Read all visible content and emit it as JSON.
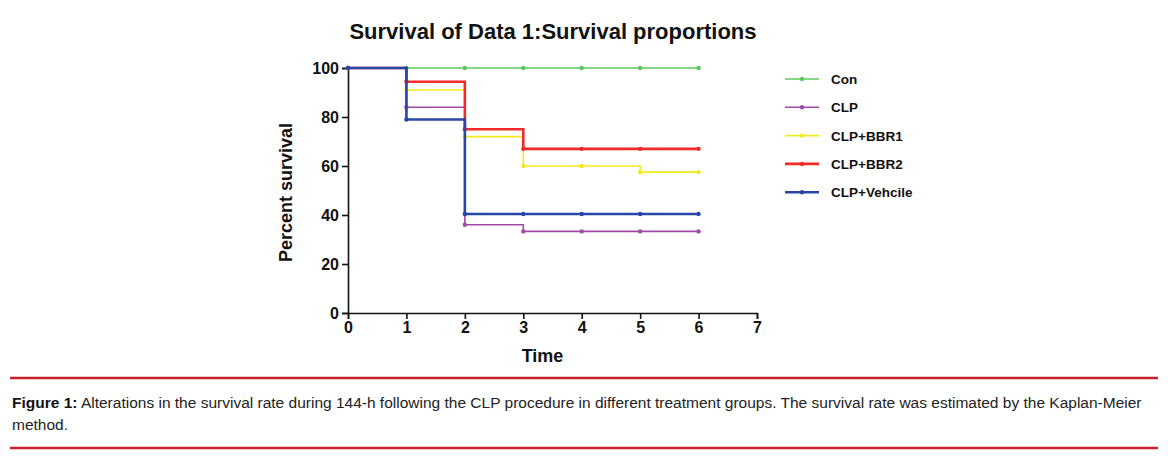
{
  "chart_data": {
    "type": "line",
    "title": "Survival of Data 1:Survival proportions",
    "x_label": "Time",
    "y_label": "Percent survival",
    "caption_label": "Figure 1:",
    "caption": "Alterations in the survival rate during 144-h following the CLP procedure in different treatment groups. The survival rate was estimated by the Kaplan-Meier method.",
    "x": [
      0,
      1,
      2,
      3,
      4,
      5,
      6
    ],
    "series": [
      {
        "name": "Con",
        "color": "#5cc85c",
        "values": [
          100,
          100,
          100,
          100,
          100,
          100,
          100
        ]
      },
      {
        "name": "CLP",
        "color": "#a04aa8",
        "values": [
          100,
          84,
          36,
          33.3,
          33.3,
          33.3,
          33.3
        ]
      },
      {
        "name": "CLP+BBR1",
        "color": "#f2ea1c",
        "values": [
          100,
          91,
          72,
          60,
          60,
          57.5,
          57.5
        ]
      },
      {
        "name": "CLP+BBR2",
        "color": "#f22a2a",
        "values": [
          100,
          94.4,
          75,
          67,
          67,
          67,
          67
        ]
      },
      {
        "name": "CLP+Vehcile",
        "color": "#2747a8",
        "values": [
          100,
          79,
          40.4,
          40.4,
          40.4,
          40.4,
          40.4
        ]
      }
    ],
    "xlim": [
      0,
      7
    ],
    "xticks": [
      0,
      1,
      2,
      3,
      4,
      5,
      6,
      7
    ],
    "ylim": [
      0,
      100
    ],
    "yticks": [
      0,
      20,
      40,
      60,
      80,
      100
    ],
    "grid": false,
    "legend": "right",
    "marker": "circle",
    "line_style": "step"
  }
}
